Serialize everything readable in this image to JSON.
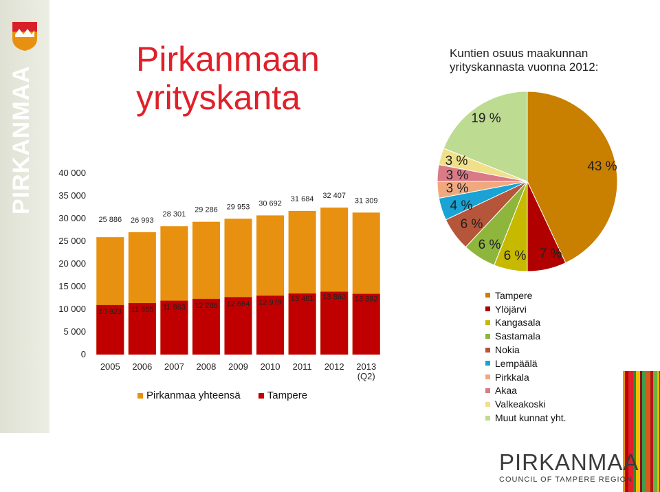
{
  "branding": {
    "side_text": "PIRKANMAA",
    "logo_name": "PIRKANMAA",
    "logo_sub": "COUNCIL OF TAMPERE REGION"
  },
  "page": {
    "title": "Pirkanmaan\nyrityskanta",
    "pie_title": "Kuntien osuus maakunnan\nyrityskannasta vuonna 2012:"
  },
  "colors": {
    "pirkanmaa": "#e8900f",
    "tampere": "#c00000",
    "title": "#e0202a"
  },
  "chart_data": [
    {
      "type": "bar",
      "categories": [
        "2005",
        "2006",
        "2007",
        "2008",
        "2009",
        "2010",
        "2011",
        "2012",
        "2013\n(Q2)"
      ],
      "series": [
        {
          "name": "Pirkanmaa yhteensä",
          "color": "#e8900f",
          "values": [
            25886,
            26993,
            28301,
            29286,
            29953,
            30692,
            31684,
            32407,
            31309
          ],
          "labels": [
            "25 886",
            "26 993",
            "28 301",
            "29 286",
            "29 953",
            "30 692",
            "31 684",
            "32 407",
            "31 309"
          ]
        },
        {
          "name": "Tampere",
          "color": "#c00000",
          "values": [
            10923,
            11355,
            11883,
            12286,
            12664,
            12979,
            13461,
            13860,
            13392
          ],
          "labels": [
            "10 923",
            "11 355",
            "11 883",
            "12 286",
            "12 664",
            "12 979",
            "13 461",
            "13 860",
            "13 392"
          ]
        }
      ],
      "ylim": [
        0,
        40000
      ],
      "yticks": [
        "0",
        "5 000",
        "10 000",
        "15 000",
        "20 000",
        "25 000",
        "30 000",
        "35 000",
        "40 000"
      ],
      "overlay": true,
      "legend": "bottom"
    },
    {
      "type": "pie",
      "title": "Kuntien osuus maakunnan\nyrityskannasta vuonna 2012:",
      "slices": [
        {
          "name": "Tampere",
          "value": 43,
          "label": "43 %",
          "color": "#c97f00"
        },
        {
          "name": "Ylöjärvi",
          "value": 7,
          "label": "7 %",
          "color": "#b00000"
        },
        {
          "name": "Kangasala",
          "value": 6,
          "label": "6 %",
          "color": "#c7b800"
        },
        {
          "name": "Sastamala",
          "value": 6,
          "label": "6 %",
          "color": "#8fb63c"
        },
        {
          "name": "Nokia",
          "value": 6,
          "label": "6 %",
          "color": "#b5553a"
        },
        {
          "name": "Lempäälä",
          "value": 4,
          "label": "4 %",
          "color": "#1aa3d4"
        },
        {
          "name": "Pirkkala",
          "value": 3,
          "label": "3 %",
          "color": "#f0a97f"
        },
        {
          "name": "Akaa",
          "value": 3,
          "label": "3 %",
          "color": "#d97a86"
        },
        {
          "name": "Valkeakoski",
          "value": 3,
          "label": "3 %",
          "color": "#f0e08a"
        },
        {
          "name": "Muut kunnat yht.",
          "value": 19,
          "label": "19 %",
          "color": "#bddb91"
        }
      ],
      "legend": "bottom-right"
    }
  ]
}
